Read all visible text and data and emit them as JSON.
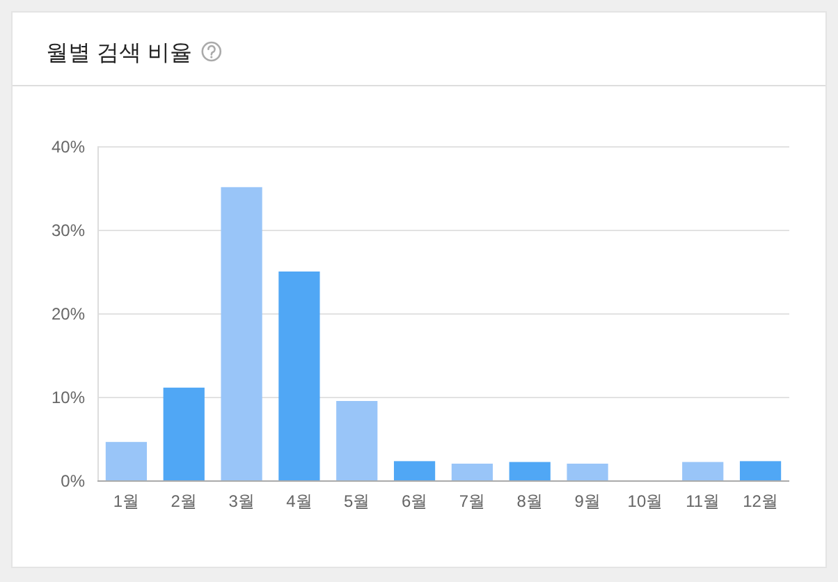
{
  "chart_data": {
    "type": "bar",
    "title": "월별 검색 비율",
    "categories": [
      "1월",
      "2월",
      "3월",
      "4월",
      "5월",
      "6월",
      "7월",
      "8월",
      "9월",
      "10월",
      "11월",
      "12월"
    ],
    "values": [
      4.6,
      11.1,
      35.1,
      25.0,
      9.5,
      2.3,
      2.0,
      2.2,
      2.0,
      0,
      2.2,
      2.3
    ],
    "colors": [
      "#99c5f8",
      "#50a7f5",
      "#99c5f8",
      "#50a7f5",
      "#99c5f8",
      "#50a7f5",
      "#99c5f8",
      "#50a7f5",
      "#99c5f8",
      "#50a7f5",
      "#99c5f8",
      "#50a7f5"
    ],
    "ylim": [
      0,
      40
    ],
    "yticks": [
      {
        "value": 0,
        "label": "0%"
      },
      {
        "value": 10,
        "label": "10%"
      },
      {
        "value": 20,
        "label": "20%"
      },
      {
        "value": 30,
        "label": "30%"
      },
      {
        "value": 40,
        "label": "40%"
      }
    ],
    "grid": "y"
  }
}
